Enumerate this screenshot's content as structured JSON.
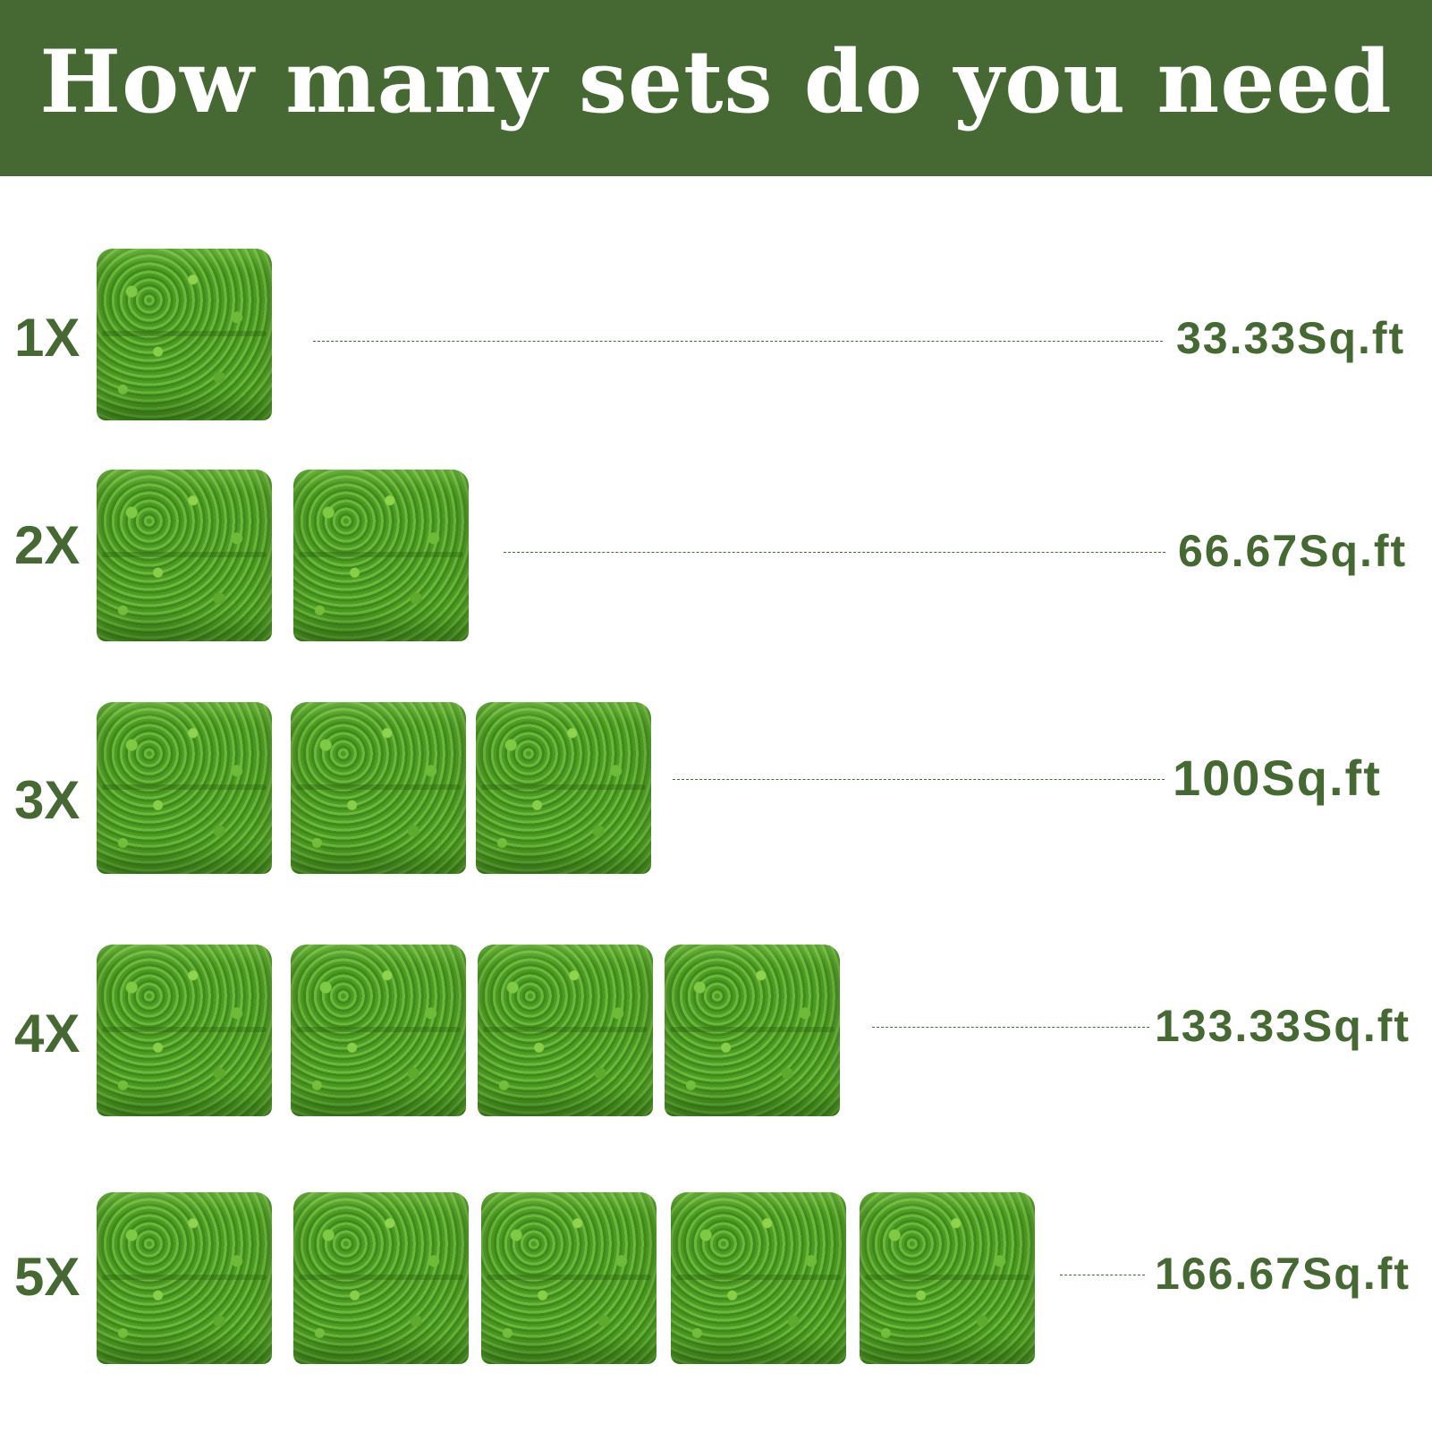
{
  "header": {
    "title": "How many sets do you need",
    "background_color": "#466933"
  },
  "accent_color": "#466933",
  "rows": [
    {
      "quantity": "1X",
      "panels": 1,
      "area": "33.33Sq.ft"
    },
    {
      "quantity": "2X",
      "panels": 2,
      "area": "66.67Sq.ft"
    },
    {
      "quantity": "3X",
      "panels": 3,
      "area": "100Sq.ft"
    },
    {
      "quantity": "4X",
      "panels": 4,
      "area": "133.33Sq.ft"
    },
    {
      "quantity": "5X",
      "panels": 5,
      "area": "166.67Sq.ft"
    }
  ]
}
